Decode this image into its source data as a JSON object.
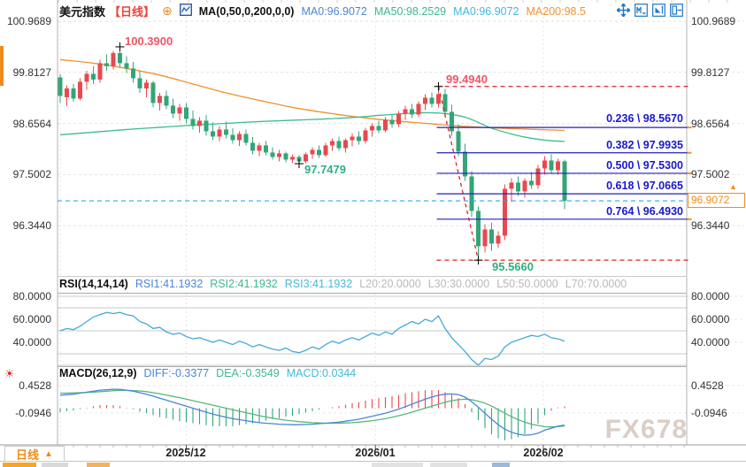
{
  "header": {
    "symbol": "美元指数",
    "period_tag": "【日线】",
    "ma_title": "MA(0,50,0,200,0,0)",
    "ma1": "MA0:96.9072",
    "ma2": "MA50:98.2529",
    "ma3": "MA0:96.9072",
    "ma4": "MA200:98.5"
  },
  "icons": {
    "add_glyph": "⊕",
    "live_glyph": "☀",
    "tag_arrow": "▲",
    "toolbar": [
      "pan-crosshair",
      "fit-horizontal-scale",
      "fit-vertical-scale",
      "shift-chart-right"
    ],
    "chart_type": "candlestick-chart"
  },
  "axes": {
    "price": [
      "100.9689",
      "99.8127",
      "98.6564",
      "97.5002",
      "96.3440"
    ],
    "rsi": [
      "80.0000",
      "60.0000",
      "40.0000"
    ],
    "macd": [
      "0.4528",
      "-0.0946"
    ]
  },
  "fib_labels": [
    "0.236 \\ 98.5670",
    "0.382 \\ 97.9935",
    "0.500 \\ 97.5300",
    "0.618 \\ 97.0665",
    "0.764 \\ 96.4930"
  ],
  "marks": {
    "high": "100.3900",
    "fib_high": "99.4940",
    "mid_low": "97.7479",
    "fib_low": "95.5660"
  },
  "price_tag": {
    "value": "96.9072"
  },
  "rsi_header": {
    "title": "RSI(14,14,14)",
    "v1": "RSI1:41.1932",
    "v2": "RSI2:41.1932",
    "v3": "RSI3:41.1932",
    "l1": "L20:20.0000",
    "l2": "L30:30.0000",
    "l3": "L50:50.0000",
    "l4": "L70:70.0000"
  },
  "macd_header": {
    "title": "MACD(26,12,9)",
    "v1": "DIFF:-0.3377",
    "v2": "DEA:-0.3549",
    "v3": "MACD:0.0344"
  },
  "dates": [
    "2025/12",
    "2026/01",
    "2026/02"
  ],
  "footer": {
    "timeframe": "日线",
    "arrow": "▲"
  },
  "watermark": "FX678",
  "colors": {
    "up": "#e8494f",
    "down": "#33a578",
    "ma50": "#3dbd92",
    "ma200": "#f0922f",
    "fib_line": "#2121b8",
    "fib_text": "#1717cf",
    "red_dash": "#e01f1f",
    "current_line": "#2aa7e8",
    "accent_orange": "#f08c1e",
    "blue_val": "#4a86d8",
    "green_val": "#3cb88a",
    "cyan_val": "#45b8dc"
  },
  "chart_data": {
    "type": "candlestick",
    "title": "美元指数 日线 (USD Index Daily)",
    "panels": [
      "price",
      "rsi",
      "macd"
    ],
    "x_dates": [
      {
        "label": "2025/12",
        "index": 19
      },
      {
        "label": "2026/01",
        "index": 47.5
      },
      {
        "label": "2026/02",
        "index": 72.8
      }
    ],
    "price": {
      "ylim": [
        95.0,
        101.2
      ],
      "axis_ticks": [
        100.9689,
        99.8127,
        98.6564,
        97.5002,
        96.344
      ],
      "current_price": 96.9072,
      "up_color": "#e8494f",
      "down_color": "#33a578",
      "ma50_color": "#3dbd92",
      "ma200_color": "#f0922f",
      "candles_ohlc": [
        [
          99.7,
          99.78,
          99.12,
          99.28
        ],
        [
          99.25,
          99.52,
          99.05,
          99.45
        ],
        [
          99.45,
          99.55,
          99.15,
          99.22
        ],
        [
          99.22,
          99.68,
          99.18,
          99.6
        ],
        [
          99.6,
          99.85,
          99.42,
          99.78
        ],
        [
          99.78,
          99.95,
          99.55,
          99.65
        ],
        [
          99.65,
          100.1,
          99.58,
          100.02
        ],
        [
          100.02,
          100.22,
          99.85,
          99.95
        ],
        [
          99.95,
          100.3,
          99.88,
          100.25
        ],
        [
          100.25,
          100.39,
          99.92,
          100.02
        ],
        [
          100.02,
          100.18,
          99.8,
          99.9
        ],
        [
          99.9,
          100.05,
          99.58,
          99.68
        ],
        [
          99.68,
          99.85,
          99.35,
          99.45
        ],
        [
          99.45,
          99.65,
          99.25,
          99.58
        ],
        [
          99.58,
          99.62,
          99.02,
          99.12
        ],
        [
          99.12,
          99.35,
          98.95,
          99.28
        ],
        [
          99.28,
          99.4,
          98.98,
          99.06
        ],
        [
          99.06,
          99.22,
          98.78,
          98.88
        ],
        [
          98.88,
          99.1,
          98.72,
          99.02
        ],
        [
          99.02,
          99.12,
          98.66,
          98.76
        ],
        [
          98.76,
          98.95,
          98.52,
          98.6
        ],
        [
          98.6,
          98.8,
          98.45,
          98.72
        ],
        [
          98.72,
          98.85,
          98.38,
          98.48
        ],
        [
          98.48,
          98.68,
          98.28,
          98.36
        ],
        [
          98.36,
          98.6,
          98.26,
          98.52
        ],
        [
          98.52,
          98.7,
          98.32,
          98.4
        ],
        [
          98.4,
          98.55,
          98.2,
          98.28
        ],
        [
          98.28,
          98.48,
          98.15,
          98.42
        ],
        [
          98.42,
          98.52,
          98.16,
          98.22
        ],
        [
          98.22,
          98.35,
          97.96,
          98.04
        ],
        [
          98.04,
          98.22,
          97.92,
          98.16
        ],
        [
          98.16,
          98.26,
          97.94,
          98.0
        ],
        [
          98.0,
          98.12,
          97.84,
          97.9
        ],
        [
          97.9,
          98.06,
          97.8,
          97.98
        ],
        [
          97.98,
          98.02,
          97.78,
          97.84
        ],
        [
          97.84,
          97.96,
          97.76,
          97.9
        ],
        [
          97.9,
          97.94,
          97.75,
          97.8
        ],
        [
          97.8,
          98.0,
          97.76,
          97.96
        ],
        [
          97.96,
          98.12,
          97.86,
          98.06
        ],
        [
          98.06,
          98.16,
          97.88,
          97.94
        ],
        [
          97.94,
          98.22,
          97.9,
          98.16
        ],
        [
          98.16,
          98.32,
          98.04,
          98.26
        ],
        [
          98.26,
          98.36,
          98.04,
          98.1
        ],
        [
          98.1,
          98.32,
          98.0,
          98.28
        ],
        [
          98.28,
          98.44,
          98.14,
          98.36
        ],
        [
          98.36,
          98.48,
          98.18,
          98.26
        ],
        [
          98.26,
          98.56,
          98.2,
          98.5
        ],
        [
          98.5,
          98.66,
          98.36,
          98.6
        ],
        [
          98.6,
          98.72,
          98.44,
          98.5
        ],
        [
          98.5,
          98.8,
          98.46,
          98.74
        ],
        [
          98.74,
          98.86,
          98.56,
          98.64
        ],
        [
          98.64,
          98.94,
          98.58,
          98.88
        ],
        [
          98.88,
          99.06,
          98.74,
          98.98
        ],
        [
          98.98,
          99.1,
          98.78,
          98.86
        ],
        [
          98.86,
          99.16,
          98.8,
          99.1
        ],
        [
          99.1,
          99.32,
          98.96,
          99.24
        ],
        [
          99.24,
          99.36,
          99.02,
          99.1
        ],
        [
          99.1,
          99.49,
          99.02,
          99.32
        ],
        [
          99.32,
          99.44,
          98.82,
          98.92
        ],
        [
          98.92,
          99.08,
          98.38,
          98.48
        ],
        [
          98.48,
          98.64,
          97.92,
          98.02
        ],
        [
          98.02,
          98.2,
          97.36,
          97.46
        ],
        [
          97.46,
          97.58,
          96.55,
          96.68
        ],
        [
          96.68,
          96.78,
          95.57,
          95.88
        ],
        [
          95.88,
          96.38,
          95.74,
          96.26
        ],
        [
          96.26,
          96.42,
          95.78,
          95.94
        ],
        [
          95.94,
          96.22,
          95.84,
          96.12
        ],
        [
          96.12,
          97.28,
          96.02,
          97.18
        ],
        [
          97.18,
          97.42,
          96.88,
          97.32
        ],
        [
          97.32,
          97.46,
          97.02,
          97.12
        ],
        [
          97.12,
          97.42,
          96.98,
          97.36
        ],
        [
          97.36,
          97.56,
          97.18,
          97.26
        ],
        [
          97.26,
          97.72,
          97.18,
          97.64
        ],
        [
          97.64,
          97.92,
          97.5,
          97.82
        ],
        [
          97.82,
          97.96,
          97.52,
          97.6
        ],
        [
          97.6,
          97.86,
          97.5,
          97.8
        ],
        [
          97.8,
          97.84,
          96.72,
          96.91
        ]
      ],
      "ma50_points": [
        [
          0,
          98.4
        ],
        [
          5,
          98.46
        ],
        [
          10,
          98.52
        ],
        [
          15,
          98.57
        ],
        [
          20,
          98.62
        ],
        [
          25,
          98.66
        ],
        [
          30,
          98.7
        ],
        [
          35,
          98.73
        ],
        [
          40,
          98.76
        ],
        [
          45,
          98.8
        ],
        [
          48,
          98.84
        ],
        [
          52,
          98.88
        ],
        [
          55,
          98.9
        ],
        [
          58,
          98.88
        ],
        [
          61,
          98.8
        ],
        [
          63,
          98.68
        ],
        [
          65,
          98.55
        ],
        [
          68,
          98.42
        ],
        [
          70,
          98.35
        ],
        [
          73,
          98.28
        ],
        [
          76,
          98.25
        ]
      ],
      "ma200_points": [
        [
          0,
          100.1
        ],
        [
          5,
          100.02
        ],
        [
          10,
          99.9
        ],
        [
          15,
          99.75
        ],
        [
          20,
          99.55
        ],
        [
          25,
          99.35
        ],
        [
          30,
          99.18
        ],
        [
          35,
          99.02
        ],
        [
          40,
          98.9
        ],
        [
          45,
          98.8
        ],
        [
          50,
          98.72
        ],
        [
          55,
          98.66
        ],
        [
          60,
          98.6
        ],
        [
          65,
          98.56
        ],
        [
          70,
          98.53
        ],
        [
          76,
          98.5
        ]
      ],
      "fib": {
        "high": 99.494,
        "low": 95.566,
        "start_index": 57,
        "low_index": 63,
        "levels": [
          {
            "ratio": 0.236,
            "price": 98.567
          },
          {
            "ratio": 0.382,
            "price": 97.9935
          },
          {
            "ratio": 0.5,
            "price": 97.53
          },
          {
            "ratio": 0.618,
            "price": 97.0665
          },
          {
            "ratio": 0.764,
            "price": 96.493
          }
        ]
      },
      "marks": [
        {
          "index": 9,
          "price": 100.39
        },
        {
          "index": 36,
          "price": 97.7479
        },
        {
          "index": 57,
          "price": 99.494
        },
        {
          "index": 63,
          "price": 95.566
        }
      ]
    },
    "rsi": {
      "ylim": [
        10,
        90
      ],
      "guide_levels": [
        80,
        70,
        50,
        30,
        20
      ],
      "axis_ticks": [
        80,
        60,
        40
      ],
      "values": [
        50,
        52,
        51,
        54,
        58,
        62,
        64,
        66,
        65,
        66,
        64,
        63,
        58,
        56,
        52,
        53,
        49,
        47,
        48,
        45,
        43,
        44,
        42,
        40,
        42,
        40,
        38,
        41,
        39,
        36,
        38,
        36,
        34,
        33,
        35,
        32,
        31,
        33,
        36,
        34,
        38,
        41,
        39,
        42,
        44,
        42,
        45,
        48,
        46,
        49,
        47,
        52,
        55,
        58,
        56,
        60,
        58,
        63,
        52,
        44,
        38,
        32,
        25,
        20,
        26,
        25,
        28,
        36,
        40,
        42,
        44,
        46,
        45,
        47,
        44,
        43,
        41
      ]
    },
    "macd": {
      "axis_ticks": [
        0.4528,
        -0.0946
      ],
      "diff": [
        0.26,
        0.27,
        0.28,
        0.3,
        0.32,
        0.34,
        0.36,
        0.37,
        0.38,
        0.375,
        0.36,
        0.34,
        0.31,
        0.28,
        0.24,
        0.2,
        0.16,
        0.12,
        0.08,
        0.04,
        0.0,
        -0.04,
        -0.08,
        -0.12,
        -0.15,
        -0.18,
        -0.21,
        -0.23,
        -0.25,
        -0.27,
        -0.29,
        -0.3,
        -0.31,
        -0.32,
        -0.325,
        -0.33,
        -0.33,
        -0.325,
        -0.32,
        -0.31,
        -0.3,
        -0.29,
        -0.28,
        -0.26,
        -0.24,
        -0.22,
        -0.19,
        -0.16,
        -0.13,
        -0.1,
        -0.06,
        -0.02,
        0.03,
        0.08,
        0.13,
        0.18,
        0.22,
        0.26,
        0.28,
        0.285,
        0.27,
        0.22,
        0.13,
        0.02,
        -0.1,
        -0.22,
        -0.33,
        -0.42,
        -0.48,
        -0.52,
        -0.54,
        -0.53,
        -0.5,
        -0.44,
        -0.4,
        -0.36,
        -0.3377
      ],
      "dea": [
        0.3,
        0.3,
        0.305,
        0.31,
        0.315,
        0.32,
        0.33,
        0.34,
        0.35,
        0.355,
        0.355,
        0.35,
        0.345,
        0.33,
        0.31,
        0.29,
        0.26,
        0.235,
        0.21,
        0.18,
        0.15,
        0.12,
        0.09,
        0.06,
        0.03,
        0.0,
        -0.03,
        -0.06,
        -0.09,
        -0.12,
        -0.15,
        -0.175,
        -0.2,
        -0.22,
        -0.24,
        -0.255,
        -0.27,
        -0.28,
        -0.29,
        -0.295,
        -0.3,
        -0.3,
        -0.3,
        -0.295,
        -0.29,
        -0.28,
        -0.265,
        -0.25,
        -0.23,
        -0.21,
        -0.18,
        -0.15,
        -0.12,
        -0.08,
        -0.04,
        0.0,
        0.04,
        0.08,
        0.12,
        0.15,
        0.17,
        0.18,
        0.17,
        0.14,
        0.1,
        0.04,
        -0.03,
        -0.1,
        -0.17,
        -0.23,
        -0.28,
        -0.32,
        -0.345,
        -0.37,
        -0.375,
        -0.368,
        -0.3549
      ]
    }
  }
}
